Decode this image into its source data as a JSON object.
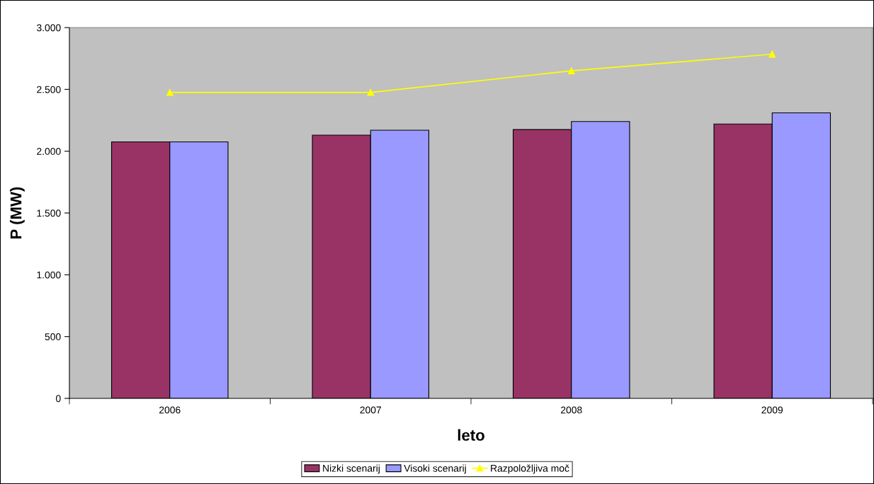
{
  "chart_data": {
    "type": "bar",
    "xlabel": "leto",
    "ylabel": "P (MW)",
    "categories": [
      "2006",
      "2007",
      "2008",
      "2009"
    ],
    "series": [
      {
        "name": "Nizki scenarij",
        "color": "#993366",
        "values": [
          2075,
          2130,
          2175,
          2220
        ]
      },
      {
        "name": "Visoki scenarij",
        "color": "#9999ff",
        "values": [
          2075,
          2170,
          2240,
          2310
        ]
      },
      {
        "name": "Razpoložljiva moč",
        "color": "#ffff00",
        "type": "line",
        "marker": "triangle",
        "values": [
          2475,
          2475,
          2650,
          2785
        ]
      }
    ],
    "ylim": [
      0,
      3000
    ],
    "yticks": [
      0,
      500,
      {
        "value": 1000,
        "label": "1.000"
      },
      {
        "value": 1500,
        "label": "1.500"
      },
      {
        "value": 2000,
        "label": "2.000"
      },
      {
        "value": 2500,
        "label": "2.500"
      },
      {
        "value": 3000,
        "label": "3.000"
      }
    ],
    "grid": false,
    "legend": "bottom"
  }
}
